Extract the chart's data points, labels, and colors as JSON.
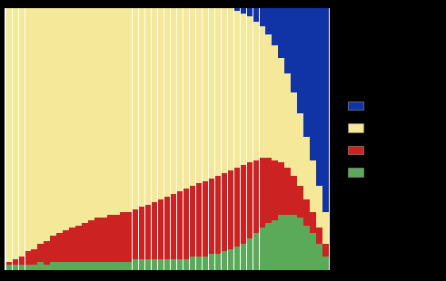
{
  "colors": [
    "#1034A6",
    "#F5E898",
    "#CC2222",
    "#5AAA5A"
  ],
  "n_bars": 51,
  "blue_vals": [
    0,
    0,
    0,
    0,
    0,
    0,
    0,
    0,
    0,
    0,
    0,
    0,
    0,
    0,
    0,
    0,
    0,
    0,
    0,
    0,
    0,
    0,
    0,
    0,
    0,
    0,
    0,
    0,
    0,
    0,
    0,
    0,
    0,
    0,
    0,
    0,
    1,
    2,
    3,
    5,
    7,
    10,
    14,
    19,
    25,
    32,
    40,
    49,
    58,
    68,
    78
  ],
  "yellow_vals": [
    97,
    96,
    95,
    93,
    92,
    90,
    89,
    87,
    86,
    85,
    84,
    83,
    82,
    81,
    80,
    80,
    79,
    79,
    78,
    78,
    77,
    76,
    75,
    74,
    73,
    72,
    71,
    70,
    69,
    68,
    67,
    66,
    65,
    64,
    63,
    62,
    60,
    58,
    56,
    53,
    50,
    47,
    44,
    40,
    36,
    32,
    28,
    24,
    20,
    16,
    12
  ],
  "red_vals": [
    1,
    2,
    3,
    5,
    6,
    7,
    9,
    10,
    11,
    12,
    13,
    14,
    15,
    16,
    17,
    17,
    18,
    18,
    19,
    19,
    19,
    20,
    21,
    22,
    23,
    24,
    25,
    26,
    27,
    27,
    28,
    29,
    29,
    30,
    30,
    30,
    30,
    30,
    29,
    28,
    27,
    25,
    23,
    20,
    18,
    15,
    12,
    10,
    8,
    6,
    5
  ],
  "green_vals": [
    2,
    2,
    2,
    2,
    2,
    3,
    2,
    3,
    3,
    3,
    3,
    3,
    3,
    3,
    3,
    3,
    3,
    3,
    3,
    3,
    4,
    4,
    4,
    4,
    4,
    4,
    4,
    4,
    4,
    5,
    5,
    5,
    6,
    6,
    7,
    8,
    9,
    10,
    12,
    14,
    16,
    18,
    19,
    21,
    21,
    21,
    20,
    17,
    14,
    10,
    5
  ],
  "figsize": [
    4.91,
    3.1
  ],
  "dpi": 100,
  "background_color": "#000000",
  "plot_bg": "#ffffff",
  "legend_colors": [
    "#1034A6",
    "#F5E898",
    "#CC2222",
    "#5AAA5A"
  ]
}
